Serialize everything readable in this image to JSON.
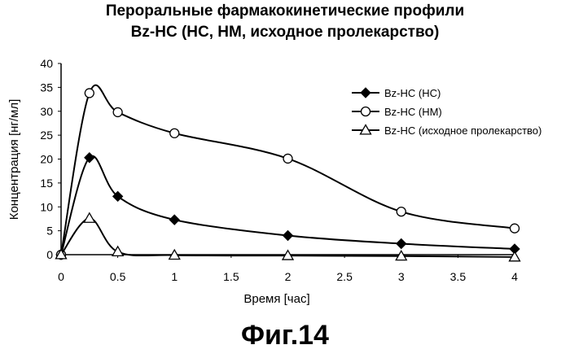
{
  "chart_data": {
    "type": "line",
    "title": "Пероральные фармакокинетические профили",
    "subtitle": "Bz-HC (HC, HM, исходное пролекарство)",
    "xlabel": "Время [час]",
    "ylabel": "Концентрация [нг/мл]",
    "xlim": [
      0,
      4
    ],
    "ylim": [
      0,
      40
    ],
    "x_ticks": [
      "0",
      "0.5",
      "1",
      "1.5",
      "2",
      "2.5",
      "3",
      "3.5",
      "4"
    ],
    "y_ticks": [
      "0",
      "5",
      "10",
      "15",
      "20",
      "25",
      "30",
      "35",
      "40"
    ],
    "grid": false,
    "legend_position": "top-right",
    "series": [
      {
        "name": "Bz-HC (HC)",
        "marker": "filled-diamond",
        "x": [
          0,
          0.25,
          0.5,
          1,
          2,
          3,
          4
        ],
        "values": [
          0,
          20.3,
          12.2,
          7.3,
          4.0,
          2.3,
          1.2
        ]
      },
      {
        "name": "Bz-HC (HM)",
        "marker": "open-circle",
        "x": [
          0,
          0.25,
          0.5,
          1,
          2,
          3,
          4
        ],
        "values": [
          0,
          33.8,
          29.8,
          25.4,
          20.1,
          9.0,
          5.5
        ]
      },
      {
        "name": "Bz-HC (исходное пролекарство)",
        "marker": "open-triangle",
        "x": [
          0,
          0.25,
          0.5,
          1,
          2,
          3,
          4
        ],
        "values": [
          0,
          7.6,
          0.6,
          -0.1,
          -0.2,
          -0.3,
          -0.5
        ]
      }
    ]
  },
  "figure_caption": "Фиг.14"
}
